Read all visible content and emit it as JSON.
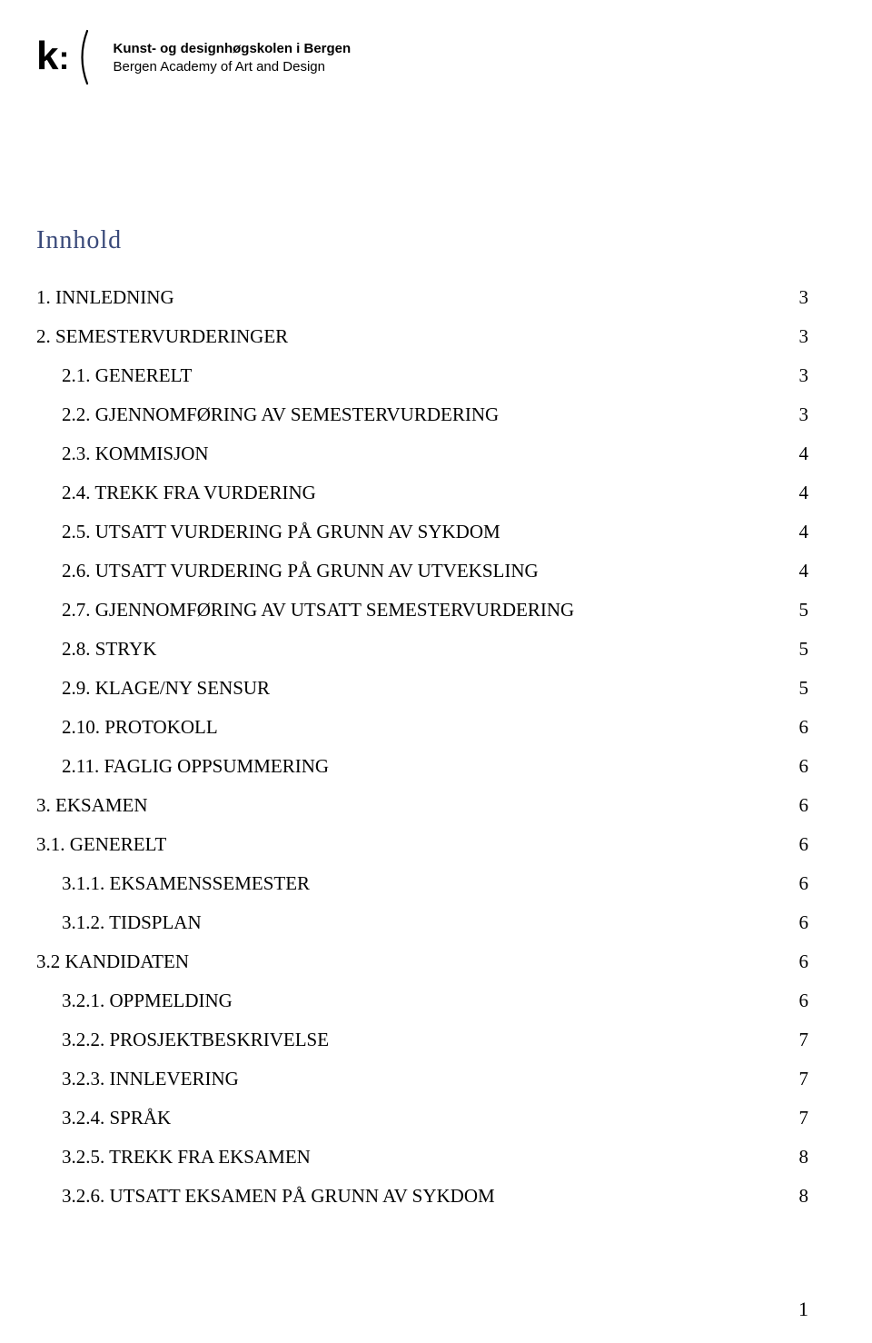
{
  "header": {
    "school_line1": "Kunst- og designhøgskolen i Bergen",
    "school_line2": "Bergen Academy of Art and Design"
  },
  "toc": {
    "title": "Innhold",
    "entries": [
      {
        "label": "1. INNLEDNING",
        "page": "3",
        "indent": 0
      },
      {
        "label": "2. SEMESTERVURDERINGER",
        "page": "3",
        "indent": 0
      },
      {
        "label": "2.1. GENERELT",
        "page": "3",
        "indent": 1
      },
      {
        "label": "2.2. GJENNOMFØRING AV SEMESTERVURDERING",
        "page": "3",
        "indent": 1
      },
      {
        "label": "2.3. KOMMISJON",
        "page": "4",
        "indent": 1
      },
      {
        "label": "2.4. TREKK FRA VURDERING",
        "page": "4",
        "indent": 1
      },
      {
        "label": "2.5. UTSATT VURDERING PÅ GRUNN AV SYKDOM",
        "page": "4",
        "indent": 1
      },
      {
        "label": "2.6. UTSATT VURDERING PÅ GRUNN AV UTVEKSLING",
        "page": "4",
        "indent": 1
      },
      {
        "label": "2.7. GJENNOMFØRING AV UTSATT SEMESTERVURDERING",
        "page": "5",
        "indent": 1
      },
      {
        "label": "2.8. STRYK",
        "page": "5",
        "indent": 1
      },
      {
        "label": "2.9. KLAGE/NY SENSUR",
        "page": "5",
        "indent": 1
      },
      {
        "label": "2.10. PROTOKOLL",
        "page": "6",
        "indent": 1
      },
      {
        "label": "2.11. FAGLIG OPPSUMMERING",
        "page": "6",
        "indent": 1
      },
      {
        "label": "3. EKSAMEN",
        "page": "6",
        "indent": 0
      },
      {
        "label": "3.1. GENERELT",
        "page": "6",
        "indent": 0
      },
      {
        "label": "3.1.1. EKSAMENSSEMESTER",
        "page": "6",
        "indent": 1
      },
      {
        "label": "3.1.2. TIDSPLAN",
        "page": "6",
        "indent": 1
      },
      {
        "label": "3.2 KANDIDATEN",
        "page": "6",
        "indent": 0
      },
      {
        "label": "3.2.1. OPPMELDING",
        "page": "6",
        "indent": 1
      },
      {
        "label": "3.2.2. PROSJEKTBESKRIVELSE",
        "page": "7",
        "indent": 1
      },
      {
        "label": "3.2.3. INNLEVERING",
        "page": "7",
        "indent": 1
      },
      {
        "label": "3.2.4. SPRÅK",
        "page": "7",
        "indent": 1
      },
      {
        "label": "3.2.5. TREKK FRA EKSAMEN",
        "page": "8",
        "indent": 1
      },
      {
        "label": "3.2.6. UTSATT EKSAMEN PÅ GRUNN AV SYKDOM",
        "page": "8",
        "indent": 1
      }
    ]
  },
  "footer": {
    "page_number": "1"
  },
  "style": {
    "title_color": "#3a4a7a",
    "body_color": "#000000",
    "title_fontsize": 28,
    "row_fontsize": 21
  }
}
